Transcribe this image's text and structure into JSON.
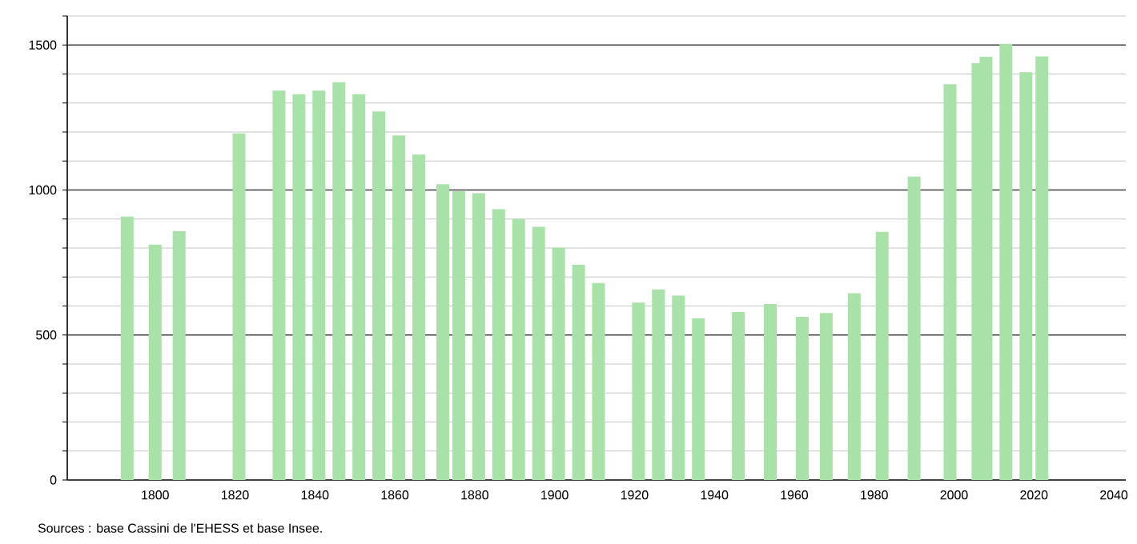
{
  "chart_data": {
    "type": "bar",
    "color": "#a8e2a8",
    "x": [
      1793,
      1800,
      1806,
      1821,
      1831,
      1836,
      1841,
      1846,
      1851,
      1856,
      1861,
      1866,
      1872,
      1876,
      1881,
      1886,
      1891,
      1896,
      1901,
      1906,
      1911,
      1921,
      1926,
      1931,
      1936,
      1946,
      1954,
      1962,
      1968,
      1975,
      1982,
      1990,
      1999,
      2006,
      2008,
      2013,
      2018,
      2022
    ],
    "values": [
      908,
      812,
      858,
      1195,
      1343,
      1330,
      1343,
      1372,
      1330,
      1271,
      1188,
      1122,
      1020,
      996,
      989,
      934,
      900,
      873,
      801,
      742,
      679,
      612,
      657,
      636,
      557,
      579,
      607,
      563,
      576,
      644,
      856,
      1046,
      1365,
      1437,
      1459,
      1504,
      1406,
      1461
    ],
    "xlim": [
      1778,
      2043
    ],
    "ylim": [
      0,
      1600
    ],
    "xticks": [
      1800,
      1820,
      1840,
      1860,
      1880,
      1900,
      1920,
      1940,
      1960,
      1980,
      2000,
      2020,
      2040
    ],
    "yticks": [
      0,
      {
        "value": 100,
        "label": null
      },
      {
        "value": 200,
        "label": null
      },
      {
        "value": 300,
        "label": null
      },
      {
        "value": 400,
        "label": null
      },
      500,
      {
        "value": 600,
        "label": null
      },
      {
        "value": 700,
        "label": null
      },
      {
        "value": 800,
        "label": null
      },
      {
        "value": 900,
        "label": null
      },
      1000,
      {
        "value": 1100,
        "label": null
      },
      {
        "value": 1200,
        "label": null
      },
      {
        "value": 1300,
        "label": null
      },
      {
        "value": 1400,
        "label": null
      },
      1500,
      {
        "value": 1600,
        "label": null
      }
    ],
    "grid": "y",
    "annotations": [
      "Sources : base Cassini de l'EHESS et base Insee."
    ]
  }
}
